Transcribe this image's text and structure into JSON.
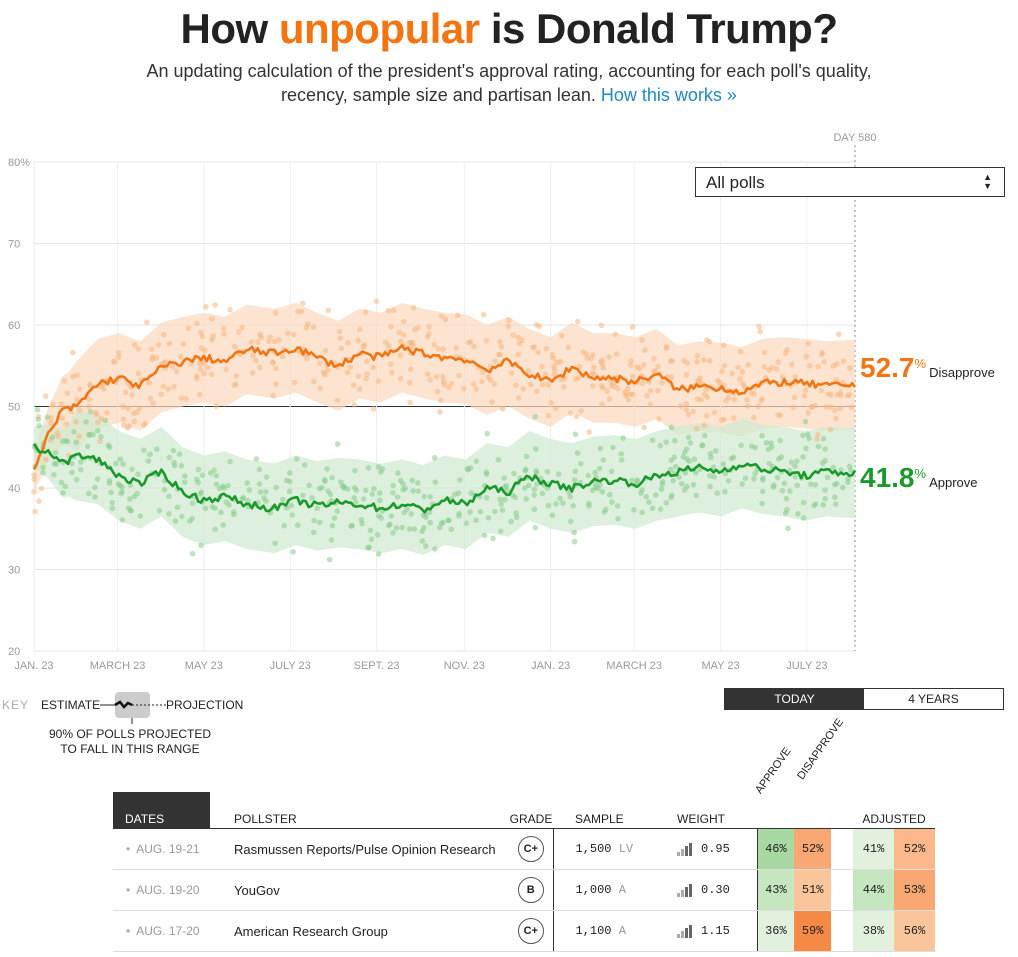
{
  "header": {
    "title_pre": "How",
    "title_highlight": "unpopular",
    "title_post": "is Donald Trump?",
    "subtitle_line1": "An updating calculation of the president's approval rating, accounting for each poll's quality,",
    "subtitle_line2": "recency, sample size and partisan lean.",
    "link": "How this works »"
  },
  "filter": {
    "selected": "All polls"
  },
  "readouts": {
    "disapprove": {
      "value": "52.7",
      "pct": "%",
      "label": "Disapprove",
      "color": "#f27512"
    },
    "approve": {
      "value": "41.8",
      "pct": "%",
      "label": "Approve",
      "color": "#1a9a2b"
    }
  },
  "key": {
    "key_label": "KEY",
    "estimate": "ESTIMATE",
    "projection": "PROJECTION",
    "note": "90% OF POLLS PROJECTED TO FALL IN THIS RANGE"
  },
  "toggle": {
    "today": "TODAY",
    "years": "4 YEARS"
  },
  "table": {
    "headers": {
      "dates": "DATES",
      "pollster": "POLLSTER",
      "grade": "GRADE",
      "sample": "SAMPLE",
      "weight": "WEIGHT",
      "approve": "APPROVE",
      "disapprove": "DISAPPROVE",
      "adjusted": "ADJUSTED"
    },
    "rows": [
      {
        "dates": "AUG. 19-21",
        "pollster": "Rasmussen Reports/Pulse Opinion Research",
        "grade": "C+",
        "sample": "1,500",
        "pop": "LV",
        "weight": "0.95",
        "approve": "46%",
        "disapprove": "52%",
        "adj_approve": "41%",
        "adj_disapprove": "52%"
      },
      {
        "dates": "AUG. 19-20",
        "pollster": "YouGov",
        "grade": "B",
        "sample": "1,000",
        "pop": "A",
        "weight": "0.30",
        "approve": "43%",
        "disapprove": "51%",
        "adj_approve": "44%",
        "adj_disapprove": "53%"
      },
      {
        "dates": "AUG. 17-20",
        "pollster": "American Research Group",
        "grade": "C+",
        "sample": "1,100",
        "pop": "A",
        "weight": "1.15",
        "approve": "36%",
        "disapprove": "59%",
        "adj_approve": "38%",
        "adj_disapprove": "56%"
      }
    ]
  },
  "chart_data": {
    "type": "line",
    "title": "How unpopular is Donald Trump?",
    "x_tick_labels": [
      "JAN. 23",
      "MARCH 23",
      "MAY 23",
      "JULY 23",
      "SEPT. 23",
      "NOV. 23",
      "JAN. 23",
      "MARCH 23",
      "MAY 23",
      "JULY 23"
    ],
    "y_tick_labels": [
      "80%",
      "70",
      "60",
      "50",
      "40",
      "30",
      "20"
    ],
    "ylim": [
      20,
      80
    ],
    "xlim": [
      0,
      580
    ],
    "day_marker": "DAY 580",
    "grid": true,
    "series": [
      {
        "name": "Disapprove",
        "color": "#f27512",
        "x": [
          0,
          10,
          20,
          30,
          45,
          60,
          75,
          90,
          105,
          120,
          135,
          150,
          170,
          185,
          200,
          215,
          230,
          245,
          260,
          275,
          290,
          305,
          320,
          335,
          350,
          365,
          380,
          395,
          410,
          425,
          440,
          455,
          470,
          485,
          500,
          515,
          530,
          545,
          560,
          580
        ],
        "values": [
          42.0,
          46.5,
          49.5,
          50.0,
          52.8,
          53.5,
          52.5,
          54.8,
          55.5,
          56.0,
          55.5,
          57.0,
          56.5,
          57.2,
          56.0,
          55.0,
          56.5,
          56.0,
          57.2,
          56.5,
          56.0,
          55.8,
          54.5,
          55.5,
          54.0,
          53.0,
          54.8,
          53.5,
          53.5,
          53.0,
          54.0,
          52.0,
          52.5,
          52.3,
          51.8,
          52.8,
          53.0,
          52.8,
          52.5,
          52.7
        ]
      },
      {
        "name": "Approve",
        "color": "#1a9a2b",
        "x": [
          0,
          10,
          20,
          30,
          45,
          60,
          75,
          90,
          105,
          120,
          135,
          150,
          170,
          185,
          200,
          215,
          230,
          245,
          260,
          275,
          290,
          305,
          320,
          335,
          350,
          365,
          380,
          395,
          410,
          425,
          440,
          455,
          470,
          485,
          500,
          515,
          530,
          545,
          560,
          580
        ],
        "values": [
          45.0,
          44.5,
          43.0,
          44.0,
          43.5,
          41.5,
          40.5,
          42.0,
          39.5,
          38.5,
          39.0,
          38.0,
          37.5,
          38.5,
          37.8,
          38.2,
          38.0,
          37.5,
          38.0,
          37.3,
          38.5,
          38.0,
          40.0,
          39.5,
          41.5,
          40.5,
          40.0,
          40.8,
          41.0,
          40.5,
          41.5,
          42.0,
          42.5,
          42.0,
          43.0,
          42.3,
          42.0,
          41.5,
          42.0,
          41.8
        ]
      }
    ]
  }
}
